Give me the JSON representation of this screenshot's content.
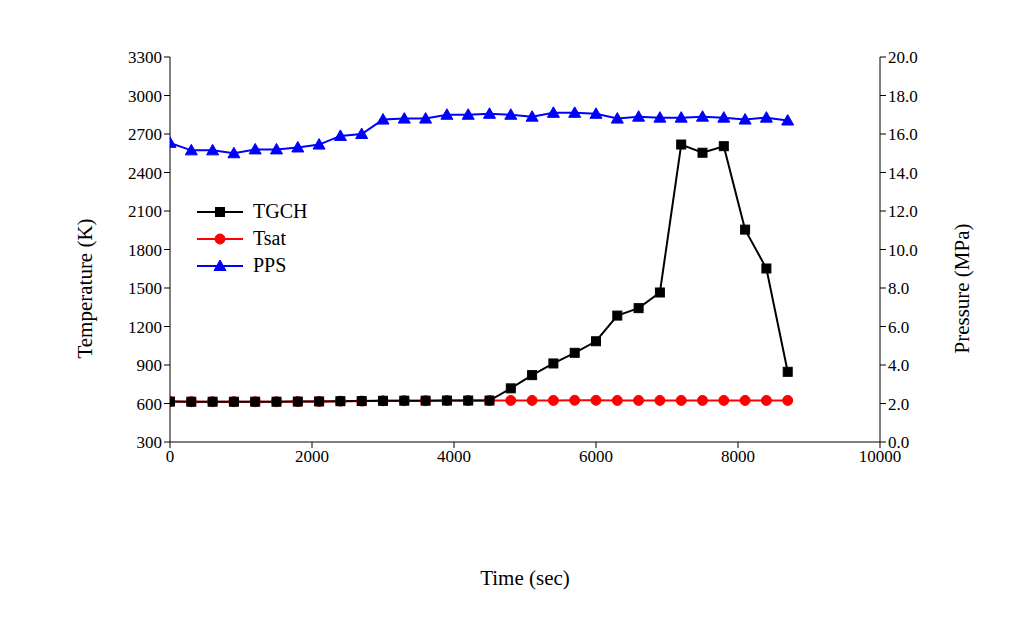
{
  "chart_data": {
    "type": "line",
    "x_label": "Time (sec)",
    "y_label": "Temperature (K)",
    "y2_label": "Pressure (MPa)",
    "grid": false,
    "legend": "upper left",
    "x": [
      0,
      300,
      600,
      900,
      1200,
      1500,
      1800,
      2100,
      2400,
      2700,
      3000,
      3300,
      3600,
      3900,
      4200,
      4500,
      4800,
      5100,
      5400,
      5700,
      6000,
      6300,
      6600,
      6900,
      7200,
      7500,
      7800,
      8100,
      8400,
      8700
    ],
    "xlim": [
      0,
      10000
    ],
    "xticks": [
      0,
      2000,
      4000,
      6000,
      8000,
      10000
    ],
    "ylim": [
      300,
      3300
    ],
    "yticks": [
      300,
      600,
      900,
      1200,
      1500,
      1800,
      2100,
      2400,
      2700,
      3000,
      3300
    ],
    "y2lim": [
      0,
      20
    ],
    "y2ticks": [
      {
        "value": 0,
        "label": "0.0"
      },
      {
        "value": 2,
        "label": "2.0"
      },
      {
        "value": 4,
        "label": "4.0"
      },
      {
        "value": 6,
        "label": "6.0"
      },
      {
        "value": 8,
        "label": "8.0"
      },
      {
        "value": 10,
        "label": "10.0"
      },
      {
        "value": 12,
        "label": "12.0"
      },
      {
        "value": 14,
        "label": "14.0"
      },
      {
        "value": 16,
        "label": "16.0"
      },
      {
        "value": 18,
        "label": "18.0"
      },
      {
        "value": 20,
        "label": "20.0"
      }
    ],
    "series": [
      {
        "name": "TGCH",
        "color": "#000000",
        "marker": "square",
        "values": [
          615,
          614,
          614,
          614,
          614,
          614,
          615,
          616,
          618,
          619,
          621,
          622,
          622,
          623,
          623,
          623,
          718,
          821,
          912,
          995,
          1085,
          1285,
          1343,
          1465,
          2618,
          2554,
          2605,
          1955,
          1652,
          847
        ]
      },
      {
        "name": "Tsat",
        "color": "#ff0000",
        "marker": "circle",
        "values": [
          615,
          614,
          614,
          614,
          614,
          614,
          615,
          616,
          618,
          619,
          621,
          622,
          622,
          623,
          623,
          623,
          624,
          624,
          624,
          625,
          625,
          624,
          624,
          624,
          624,
          624,
          624,
          624,
          624,
          624
        ]
      },
      {
        "name": "PPS",
        "color": "#0000ff",
        "marker": "triangle",
        "axis": "y2",
        "values": [
          15.54,
          15.15,
          15.15,
          15.0,
          15.2,
          15.2,
          15.3,
          15.45,
          15.9,
          16.0,
          16.75,
          16.8,
          16.8,
          17.0,
          17.0,
          17.05,
          17.0,
          16.9,
          17.1,
          17.1,
          17.05,
          16.8,
          16.9,
          16.85,
          16.85,
          16.9,
          16.85,
          16.75,
          16.85,
          16.7
        ]
      }
    ]
  }
}
